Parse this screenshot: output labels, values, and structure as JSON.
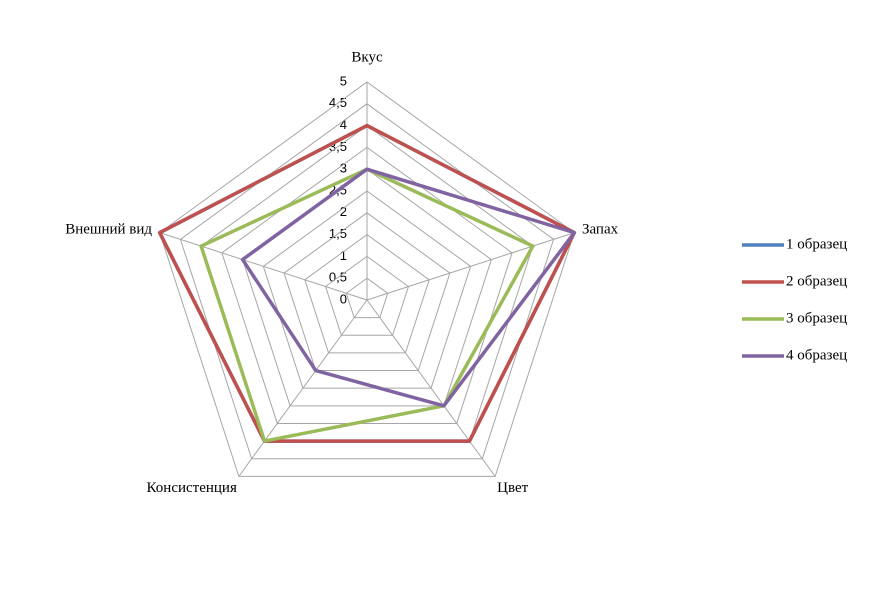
{
  "chart_data": {
    "type": "radar",
    "categories": [
      "Вкус",
      "Запах",
      "Цвет",
      "Консистенция",
      "Внешний вид"
    ],
    "rlim": [
      0,
      5
    ],
    "rticks": [
      0,
      {
        "value": 0.5,
        "label": "0,5"
      },
      1,
      {
        "value": 1.5,
        "label": "1,5"
      },
      2,
      {
        "value": 2.5,
        "label": "2,5"
      },
      3,
      {
        "value": 3.5,
        "label": "3,5"
      },
      4,
      {
        "value": 4.5,
        "label": "4,5"
      },
      5
    ],
    "grid": true,
    "legend": "right",
    "series": [
      {
        "name": "1 образец",
        "color": "#4f81bd",
        "values": [
          4,
          5,
          4,
          4,
          5
        ]
      },
      {
        "name": "2 образец",
        "color": "#c0504d",
        "values": [
          4,
          5,
          4,
          4,
          5
        ]
      },
      {
        "name": "3 образец",
        "color": "#9bbb59",
        "values": [
          3,
          4,
          3,
          4,
          4
        ]
      },
      {
        "name": "4 образец",
        "color": "#8064a2",
        "values": [
          3,
          5,
          3,
          2,
          3
        ]
      }
    ]
  }
}
